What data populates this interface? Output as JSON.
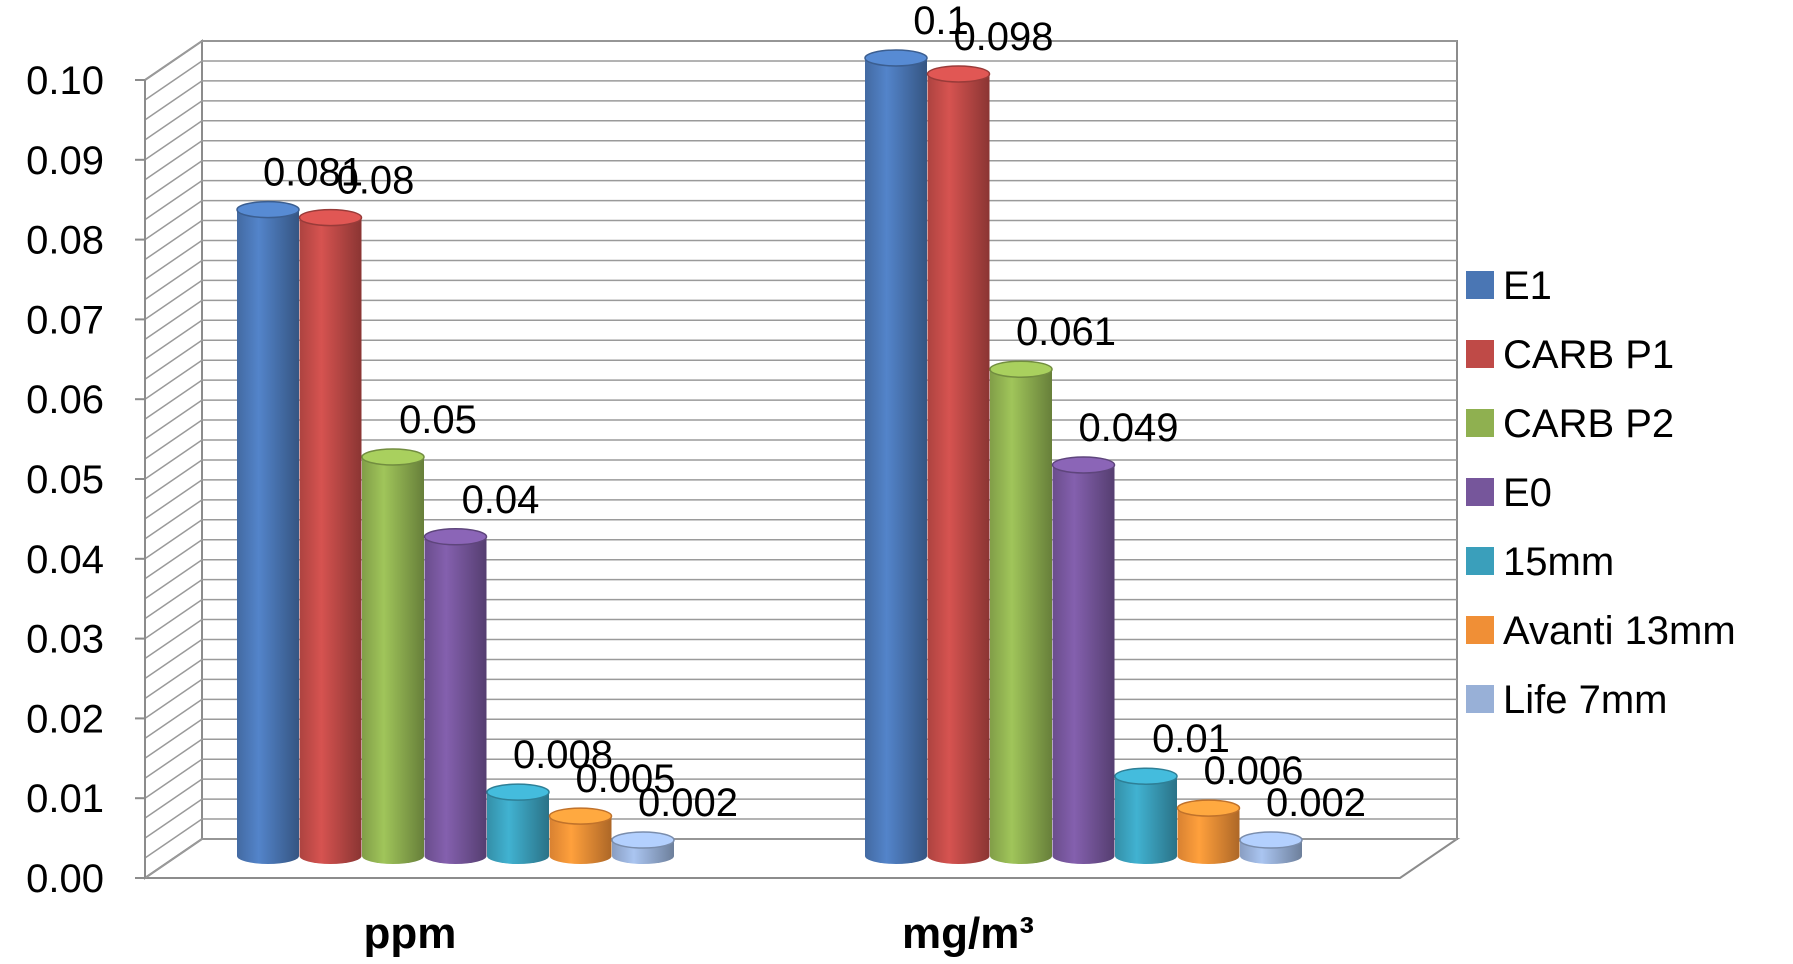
{
  "chart_data": {
    "type": "bar",
    "style": "3d-cylinder-clustered",
    "categories": [
      "ppm",
      "mg/m³"
    ],
    "series": [
      {
        "name": "E1",
        "color": "#4a76b4",
        "values": [
          0.081,
          0.1
        ],
        "labels": [
          "0.081",
          "0.1"
        ]
      },
      {
        "name": "CARB P1",
        "color": "#bf4a47",
        "values": [
          0.08,
          0.098
        ],
        "labels": [
          "0.08",
          "0.098"
        ]
      },
      {
        "name": "CARB P2",
        "color": "#8fb050",
        "values": [
          0.05,
          0.061
        ],
        "labels": [
          "0.05",
          "0.061"
        ]
      },
      {
        "name": "E0",
        "color": "#76569b",
        "values": [
          0.04,
          0.049
        ],
        "labels": [
          "0.04",
          "0.049"
        ]
      },
      {
        "name": "15mm",
        "color": "#3a9fbb",
        "values": [
          0.008,
          0.01
        ],
        "labels": [
          "0.008",
          "0.01"
        ]
      },
      {
        "name": "Avanti 13mm",
        "color": "#f08f36",
        "values": [
          0.005,
          0.006
        ],
        "labels": [
          "0.005",
          "0.006"
        ]
      },
      {
        "name": "Life 7mm",
        "color": "#98b0d7",
        "values": [
          0.002,
          0.002
        ],
        "labels": [
          "0.002",
          "0.002"
        ]
      }
    ],
    "y_ticks": [
      "0.00",
      "0.01",
      "0.02",
      "0.03",
      "0.04",
      "0.05",
      "0.06",
      "0.07",
      "0.08",
      "0.09",
      "0.10"
    ],
    "ylim": [
      0,
      0.1
    ],
    "title": "",
    "xlabel": "",
    "ylabel": "",
    "grid": true,
    "legend_position": "right"
  }
}
